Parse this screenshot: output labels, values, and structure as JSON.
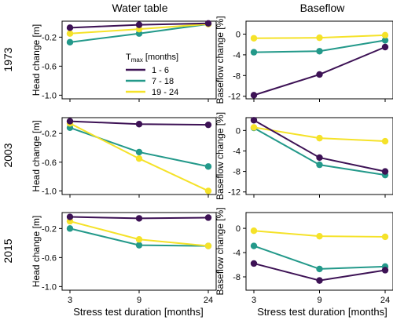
{
  "figure": {
    "col_titles": [
      "Water table",
      "Baseflow"
    ],
    "row_titles": [
      "1973",
      "2003",
      "2015"
    ],
    "xlabel": "Stress test duration [months]"
  },
  "legend": {
    "title_main": "T",
    "title_sub": "max",
    "title_rest": " [months]",
    "entries": [
      {
        "label": "1 - 6",
        "color": "#3d1255"
      },
      {
        "label": "7 - 18",
        "color": "#23998a"
      },
      {
        "label": "19 - 24",
        "color": "#f5e229"
      }
    ]
  },
  "chart_data": [
    {
      "type": "line",
      "row": "1973",
      "column": "Water table",
      "ylabel": "Head change [m]",
      "x": [
        3,
        9,
        24
      ],
      "x_ticks": [
        "3",
        "9",
        "24"
      ],
      "ylim": [
        -1.05,
        0.02
      ],
      "y_ticks": [
        -0.2,
        -0.6,
        -1.0
      ],
      "y_tick_labels": [
        "-0.2",
        "-0.6",
        "-1.0"
      ],
      "series": [
        {
          "name": "1 - 6",
          "values": [
            -0.07,
            -0.03,
            -0.01
          ]
        },
        {
          "name": "7 - 18",
          "values": [
            -0.27,
            -0.15,
            -0.02
          ]
        },
        {
          "name": "19 - 24",
          "values": [
            -0.15,
            -0.09,
            -0.02
          ]
        }
      ]
    },
    {
      "type": "line",
      "row": "1973",
      "column": "Baseflow",
      "ylabel": "Baseflow change [%]",
      "x": [
        3,
        9,
        24
      ],
      "x_ticks": [
        "3",
        "9",
        "24"
      ],
      "ylim": [
        -12.5,
        2.5
      ],
      "y_ticks": [
        0,
        -4,
        -8,
        -12
      ],
      "y_tick_labels": [
        "0",
        "-4",
        "-8",
        "-12"
      ],
      "series": [
        {
          "name": "1 - 6",
          "values": [
            -11.8,
            -7.8,
            -2.5
          ]
        },
        {
          "name": "7 - 18",
          "values": [
            -3.5,
            -3.3,
            -1.2
          ]
        },
        {
          "name": "19 - 24",
          "values": [
            -0.8,
            -0.7,
            -0.2
          ]
        }
      ]
    },
    {
      "type": "line",
      "row": "2003",
      "column": "Water table",
      "ylabel": "Head change [m]",
      "x": [
        3,
        9,
        24
      ],
      "x_ticks": [
        "3",
        "9",
        "24"
      ],
      "ylim": [
        -1.05,
        0.02
      ],
      "y_ticks": [
        -0.2,
        -0.6,
        -1.0
      ],
      "y_tick_labels": [
        "-0.2",
        "-0.6",
        "-1.0"
      ],
      "series": [
        {
          "name": "1 - 6",
          "values": [
            -0.03,
            -0.07,
            -0.08
          ]
        },
        {
          "name": "7 - 18",
          "values": [
            -0.12,
            -0.46,
            -0.66
          ]
        },
        {
          "name": "19 - 24",
          "values": [
            -0.06,
            -0.55,
            -1.0
          ]
        }
      ]
    },
    {
      "type": "line",
      "row": "2003",
      "column": "Baseflow",
      "ylabel": "Baseflow change [%]",
      "x": [
        3,
        9,
        24
      ],
      "x_ticks": [
        "3",
        "9",
        "24"
      ],
      "ylim": [
        -12.5,
        2.5
      ],
      "y_ticks": [
        0,
        -4,
        -8,
        -12
      ],
      "y_tick_labels": [
        "0",
        "-4",
        "-8",
        "-12"
      ],
      "series": [
        {
          "name": "1 - 6",
          "values": [
            2.0,
            -5.3,
            -8.0
          ]
        },
        {
          "name": "7 - 18",
          "values": [
            0.5,
            -6.7,
            -8.7
          ]
        },
        {
          "name": "19 - 24",
          "values": [
            0.6,
            -1.5,
            -2.1
          ]
        }
      ]
    },
    {
      "type": "line",
      "row": "2015",
      "column": "Water table",
      "ylabel": "Head change [m]",
      "x": [
        3,
        9,
        24
      ],
      "x_ticks": [
        "3",
        "9",
        "24"
      ],
      "ylim": [
        -1.05,
        0.02
      ],
      "y_ticks": [
        -0.2,
        -0.6,
        -1.0
      ],
      "y_tick_labels": [
        "-0.2",
        "-0.6",
        "-1.0"
      ],
      "series": [
        {
          "name": "1 - 6",
          "values": [
            -0.04,
            -0.06,
            -0.05
          ]
        },
        {
          "name": "7 - 18",
          "values": [
            -0.2,
            -0.43,
            -0.44
          ]
        },
        {
          "name": "19 - 24",
          "values": [
            -0.1,
            -0.35,
            -0.44
          ]
        }
      ]
    },
    {
      "type": "line",
      "row": "2015",
      "column": "Baseflow",
      "ylabel": "Baseflow change [%]",
      "x": [
        3,
        9,
        24
      ],
      "x_ticks": [
        "3",
        "9",
        "24"
      ],
      "ylim": [
        -10.2,
        2.6
      ],
      "y_ticks": [
        0,
        -4,
        -8
      ],
      "y_tick_labels": [
        "0",
        "-4",
        "-8"
      ],
      "series": [
        {
          "name": "1 - 6",
          "values": [
            -5.8,
            -8.6,
            -6.9
          ]
        },
        {
          "name": "7 - 18",
          "values": [
            -2.9,
            -6.7,
            -6.3
          ]
        },
        {
          "name": "19 - 24",
          "values": [
            -0.4,
            -1.3,
            -1.4
          ]
        }
      ]
    }
  ]
}
